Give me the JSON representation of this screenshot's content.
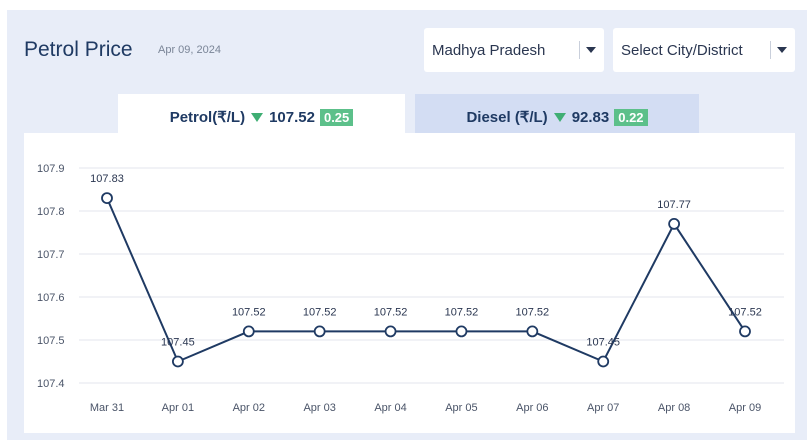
{
  "header": {
    "title": "Petrol Price",
    "date": "Apr 09, 2024"
  },
  "filters": {
    "state": "Madhya Pradesh",
    "city": "Select City/District"
  },
  "tabs": {
    "petrol": {
      "label": "Petrol(₹/L)",
      "price": "107.52",
      "change": "0.25"
    },
    "diesel": {
      "label": "Diesel (₹/L)",
      "price": "92.83",
      "change": "0.22"
    }
  },
  "colors": {
    "line": "#1f3a63",
    "badge": "#5cc08a",
    "down_arrow": "#3fae73"
  },
  "chart_data": {
    "type": "line",
    "categories": [
      "Mar 31",
      "Apr 01",
      "Apr 02",
      "Apr 03",
      "Apr 04",
      "Apr 05",
      "Apr 06",
      "Apr 07",
      "Apr 08",
      "Apr 09"
    ],
    "values": [
      107.83,
      107.45,
      107.52,
      107.52,
      107.52,
      107.52,
      107.52,
      107.45,
      107.77,
      107.52
    ],
    "data_labels": [
      "107.83",
      "107.45",
      "107.52",
      "107.52",
      "107.52",
      "107.52",
      "107.52",
      "107.45",
      "107.77",
      "107.52"
    ],
    "y_ticks": [
      "107.9",
      "107.8",
      "107.7",
      "107.6",
      "107.5",
      "107.4"
    ],
    "ylim": [
      107.4,
      107.9
    ],
    "grid": true
  }
}
